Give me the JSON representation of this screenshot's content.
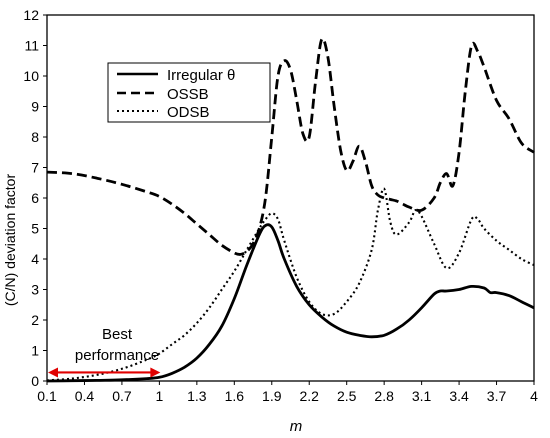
{
  "chart_data": {
    "type": "line",
    "xlabel": "m",
    "ylabel": "(C/N) deviation factor",
    "xlim": [
      0.1,
      4.0
    ],
    "ylim": [
      0,
      12
    ],
    "x_ticks": [
      "0.1",
      "0.4",
      "0.7",
      "1",
      "1.3",
      "1.6",
      "1.9",
      "2.2",
      "2.5",
      "2.8",
      "3.1",
      "3.4",
      "3.7",
      "4"
    ],
    "y_ticks": [
      "0",
      "1",
      "2",
      "3",
      "4",
      "5",
      "6",
      "7",
      "8",
      "9",
      "10",
      "11",
      "12"
    ],
    "grid": false,
    "legend": "top-left",
    "series": [
      {
        "name": "Irregular θ",
        "style": "solid",
        "color": "#000000",
        "x": [
          0.1,
          0.3,
          0.5,
          0.7,
          0.9,
          1.0,
          1.1,
          1.2,
          1.3,
          1.4,
          1.5,
          1.6,
          1.7,
          1.8,
          1.85,
          1.9,
          1.95,
          2.0,
          2.1,
          2.2,
          2.3,
          2.4,
          2.5,
          2.6,
          2.7,
          2.8,
          2.9,
          3.0,
          3.1,
          3.2,
          3.25,
          3.3,
          3.4,
          3.5,
          3.6,
          3.65,
          3.7,
          3.8,
          3.9,
          4.0
        ],
        "y": [
          0.0,
          0.01,
          0.02,
          0.04,
          0.08,
          0.12,
          0.25,
          0.45,
          0.75,
          1.2,
          1.8,
          2.7,
          3.8,
          4.8,
          5.1,
          5.05,
          4.6,
          4.0,
          3.1,
          2.5,
          2.1,
          1.8,
          1.6,
          1.5,
          1.45,
          1.5,
          1.7,
          2.0,
          2.4,
          2.85,
          2.95,
          2.95,
          3.0,
          3.1,
          3.05,
          2.9,
          2.9,
          2.8,
          2.6,
          2.4
        ]
      },
      {
        "name": "OSSB",
        "style": "dashed",
        "color": "#000000",
        "x": [
          0.1,
          0.3,
          0.5,
          0.7,
          0.9,
          1.0,
          1.1,
          1.2,
          1.3,
          1.4,
          1.5,
          1.6,
          1.65,
          1.7,
          1.75,
          1.8,
          1.85,
          1.9,
          1.95,
          2.0,
          2.05,
          2.1,
          2.15,
          2.2,
          2.25,
          2.3,
          2.35,
          2.4,
          2.45,
          2.5,
          2.55,
          2.6,
          2.65,
          2.7,
          2.75,
          2.8,
          2.85,
          2.9,
          2.95,
          3.0,
          3.1,
          3.2,
          3.25,
          3.3,
          3.35,
          3.4,
          3.45,
          3.5,
          3.55,
          3.6,
          3.7,
          3.8,
          3.9,
          4.0
        ],
        "y": [
          6.85,
          6.8,
          6.65,
          6.45,
          6.2,
          6.05,
          5.8,
          5.5,
          5.15,
          4.8,
          4.45,
          4.2,
          4.15,
          4.25,
          4.5,
          5.0,
          6.0,
          8.0,
          10.0,
          10.5,
          10.2,
          9.2,
          8.1,
          8.0,
          9.8,
          11.2,
          10.6,
          9.0,
          7.6,
          6.9,
          7.2,
          7.7,
          7.2,
          6.4,
          6.1,
          6.0,
          5.95,
          5.9,
          5.8,
          5.7,
          5.6,
          6.0,
          6.5,
          6.8,
          6.4,
          7.5,
          9.5,
          11.0,
          10.8,
          10.3,
          9.2,
          8.6,
          7.8,
          7.5
        ]
      },
      {
        "name": "ODSB",
        "style": "dotted",
        "color": "#000000",
        "x": [
          0.1,
          0.3,
          0.5,
          0.7,
          0.9,
          1.0,
          1.1,
          1.2,
          1.3,
          1.4,
          1.5,
          1.6,
          1.7,
          1.8,
          1.85,
          1.9,
          1.95,
          2.0,
          2.1,
          2.2,
          2.3,
          2.4,
          2.5,
          2.6,
          2.7,
          2.75,
          2.8,
          2.85,
          2.9,
          3.0,
          3.05,
          3.1,
          3.2,
          3.3,
          3.4,
          3.5,
          3.55,
          3.6,
          3.7,
          3.8,
          3.9,
          4.0
        ],
        "y": [
          0.02,
          0.08,
          0.2,
          0.4,
          0.7,
          0.9,
          1.2,
          1.5,
          1.9,
          2.4,
          3.0,
          3.6,
          4.3,
          5.0,
          5.3,
          5.5,
          5.3,
          4.6,
          3.4,
          2.6,
          2.2,
          2.2,
          2.6,
          3.2,
          4.3,
          5.6,
          6.3,
          5.2,
          4.8,
          5.2,
          5.6,
          5.4,
          4.5,
          3.7,
          4.2,
          5.3,
          5.3,
          5.0,
          4.6,
          4.3,
          4.0,
          3.8
        ]
      }
    ],
    "annotations": [
      {
        "text": "Best",
        "kind": "text"
      },
      {
        "text": "performance",
        "kind": "text"
      },
      {
        "kind": "double-arrow",
        "color": "#e00000",
        "x_from": 0.1,
        "x_to": 1.0,
        "y": 0.28
      }
    ]
  }
}
